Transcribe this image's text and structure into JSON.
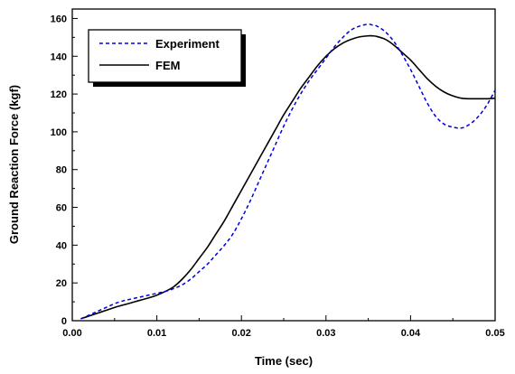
{
  "chart_data": {
    "type": "line",
    "xlabel": "Time (sec)",
    "ylabel": "Ground  Reaction  Force  (kgf)",
    "xlim": [
      0,
      0.05
    ],
    "ylim": [
      0,
      165
    ],
    "x_ticks": [
      0.0,
      0.01,
      0.02,
      0.03,
      0.04,
      0.05
    ],
    "x_tick_labels": [
      "0.00",
      "0.01",
      "0.02",
      "0.03",
      "0.04",
      "0.05"
    ],
    "y_ticks": [
      0,
      20,
      40,
      60,
      80,
      100,
      120,
      140,
      160
    ],
    "y_tick_labels": [
      "0",
      "20",
      "40",
      "60",
      "80",
      "100",
      "120",
      "140",
      "160"
    ],
    "grid": false,
    "legend_position": "top-left",
    "series": [
      {
        "name": "Experiment",
        "color": "#0000dd",
        "style": "dashed",
        "x": [
          0.001,
          0.002,
          0.003,
          0.004,
          0.005,
          0.006,
          0.007,
          0.008,
          0.009,
          0.01,
          0.011,
          0.012,
          0.013,
          0.014,
          0.015,
          0.016,
          0.017,
          0.018,
          0.019,
          0.02,
          0.021,
          0.022,
          0.023,
          0.024,
          0.025,
          0.026,
          0.027,
          0.028,
          0.029,
          0.03,
          0.031,
          0.032,
          0.033,
          0.034,
          0.035,
          0.0355,
          0.036,
          0.037,
          0.038,
          0.039,
          0.04,
          0.041,
          0.042,
          0.043,
          0.044,
          0.045,
          0.046,
          0.047,
          0.048,
          0.049,
          0.05
        ],
        "y": [
          1,
          3,
          5,
          7,
          9,
          10.5,
          11.5,
          12.5,
          13.5,
          14.5,
          15.5,
          17,
          19,
          22,
          26,
          30,
          35,
          40,
          46,
          54,
          63,
          73,
          83,
          93,
          103,
          112,
          120,
          127,
          133,
          139,
          145,
          150,
          154,
          156,
          157,
          156.5,
          156,
          153,
          148,
          141,
          133,
          124,
          115,
          108,
          104,
          102.5,
          102,
          104,
          108,
          114,
          122
        ]
      },
      {
        "name": "FEM",
        "color": "#000000",
        "style": "solid",
        "x": [
          0.001,
          0.002,
          0.003,
          0.004,
          0.005,
          0.006,
          0.007,
          0.008,
          0.009,
          0.01,
          0.011,
          0.012,
          0.013,
          0.014,
          0.015,
          0.016,
          0.017,
          0.018,
          0.019,
          0.02,
          0.021,
          0.022,
          0.023,
          0.024,
          0.025,
          0.026,
          0.027,
          0.028,
          0.029,
          0.03,
          0.031,
          0.032,
          0.033,
          0.034,
          0.035,
          0.0355,
          0.036,
          0.037,
          0.038,
          0.039,
          0.04,
          0.041,
          0.042,
          0.043,
          0.044,
          0.045,
          0.046,
          0.047,
          0.048,
          0.049,
          0.05
        ],
        "y": [
          1,
          2.5,
          4,
          5.5,
          7,
          8.3,
          9.5,
          10.8,
          12,
          13.5,
          15.5,
          18,
          22,
          27,
          33,
          39,
          46,
          53,
          61,
          69,
          77,
          85,
          93,
          101,
          109,
          116,
          123,
          129,
          135,
          140,
          144,
          147,
          149,
          150.3,
          150.8,
          150.8,
          150.5,
          149,
          146,
          142,
          138,
          133,
          128,
          124,
          121,
          119,
          117.8,
          117.5,
          117.5,
          117.5,
          117.8
        ]
      }
    ]
  }
}
